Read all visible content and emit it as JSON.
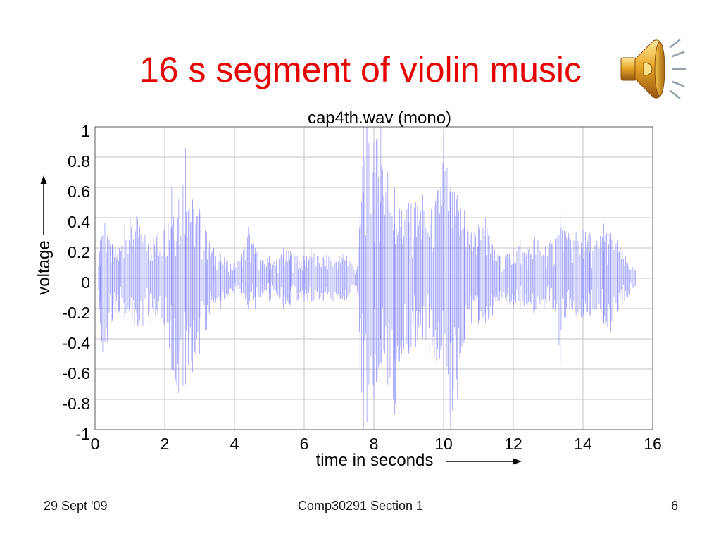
{
  "slide": {
    "title": "16 s segment of violin music",
    "title_color": "#e60000",
    "icon": "speaker-sound-icon"
  },
  "chart_data": {
    "type": "line",
    "title": "cap4th.wav (mono)",
    "xlabel": "time in seconds",
    "ylabel": "voltage",
    "xlim": [
      0,
      16
    ],
    "ylim": [
      -1,
      1
    ],
    "grid": true,
    "line_color": "#7272ff",
    "x_ticks": [
      "0",
      "2",
      "4",
      "6",
      "8",
      "10",
      "12",
      "14",
      "16"
    ],
    "y_ticks": [
      "1",
      "0.8",
      "0.6",
      "0.4",
      "0.2",
      "0",
      "-0.2",
      "-0.4",
      "-0.6",
      "-0.8",
      "-1"
    ],
    "x": [
      0.1,
      0.15,
      0.25,
      0.35,
      0.5,
      0.7,
      0.85,
      1.0,
      1.2,
      1.4,
      1.6,
      1.8,
      2.0,
      2.2,
      2.4,
      2.6,
      2.8,
      3.0,
      3.2,
      3.4,
      3.6,
      3.8,
      4.0,
      4.2,
      4.4,
      4.6,
      4.8,
      5.0,
      5.2,
      5.4,
      5.6,
      5.8,
      6.0,
      6.2,
      6.4,
      6.6,
      6.8,
      7.0,
      7.2,
      7.4,
      7.5,
      7.6,
      7.7,
      7.8,
      8.0,
      8.2,
      8.4,
      8.6,
      8.8,
      9.0,
      9.2,
      9.4,
      9.6,
      9.8,
      10.0,
      10.2,
      10.4,
      10.6,
      10.8,
      11.0,
      11.2,
      11.4,
      11.6,
      11.8,
      12.0,
      12.2,
      12.4,
      12.6,
      12.8,
      13.0,
      13.2,
      13.35,
      13.5,
      13.8,
      14.0,
      14.2,
      14.4,
      14.6,
      14.8,
      15.0,
      15.2,
      15.4,
      15.5
    ],
    "y_max": [
      0.08,
      0.25,
      0.56,
      0.28,
      0.22,
      0.2,
      0.36,
      0.4,
      0.42,
      0.36,
      0.3,
      0.3,
      0.36,
      0.6,
      0.52,
      0.86,
      0.52,
      0.46,
      0.3,
      0.2,
      0.16,
      0.12,
      0.1,
      0.16,
      0.34,
      0.2,
      0.12,
      0.15,
      0.12,
      0.2,
      0.18,
      0.15,
      0.15,
      0.2,
      0.15,
      0.16,
      0.15,
      0.16,
      0.2,
      0.1,
      0.05,
      0.4,
      1.0,
      1.0,
      0.9,
      1.0,
      0.7,
      0.6,
      0.45,
      0.5,
      0.5,
      0.55,
      0.45,
      0.55,
      0.96,
      0.6,
      0.55,
      0.45,
      0.3,
      0.35,
      0.4,
      0.22,
      0.15,
      0.16,
      0.2,
      0.25,
      0.2,
      0.3,
      0.25,
      0.25,
      0.26,
      0.42,
      0.3,
      0.3,
      0.32,
      0.3,
      0.25,
      0.36,
      0.3,
      0.25,
      0.15,
      0.1,
      0.05
    ],
    "y_min": [
      -0.08,
      -0.3,
      -0.7,
      -0.42,
      -0.28,
      -0.22,
      -0.26,
      -0.24,
      -0.42,
      -0.3,
      -0.3,
      -0.24,
      -0.32,
      -0.6,
      -0.76,
      -0.7,
      -0.62,
      -0.5,
      -0.34,
      -0.16,
      -0.2,
      -0.12,
      -0.1,
      -0.1,
      -0.2,
      -0.2,
      -0.1,
      -0.15,
      -0.1,
      -0.2,
      -0.18,
      -0.15,
      -0.15,
      -0.16,
      -0.15,
      -0.15,
      -0.15,
      -0.15,
      -0.16,
      -0.1,
      -0.05,
      -0.6,
      -1.0,
      -0.95,
      -0.8,
      -0.56,
      -0.7,
      -0.9,
      -0.5,
      -0.5,
      -0.45,
      -0.4,
      -0.5,
      -0.55,
      -0.6,
      -1.0,
      -0.8,
      -0.4,
      -0.3,
      -0.3,
      -0.3,
      -0.25,
      -0.15,
      -0.15,
      -0.2,
      -0.2,
      -0.2,
      -0.25,
      -0.2,
      -0.2,
      -0.22,
      -0.56,
      -0.26,
      -0.25,
      -0.26,
      -0.25,
      -0.2,
      -0.3,
      -0.36,
      -0.22,
      -0.15,
      -0.1,
      -0.05
    ]
  },
  "footer": {
    "date": "29 Sept '09",
    "course": "Comp30291 Section 1",
    "page": "6"
  }
}
